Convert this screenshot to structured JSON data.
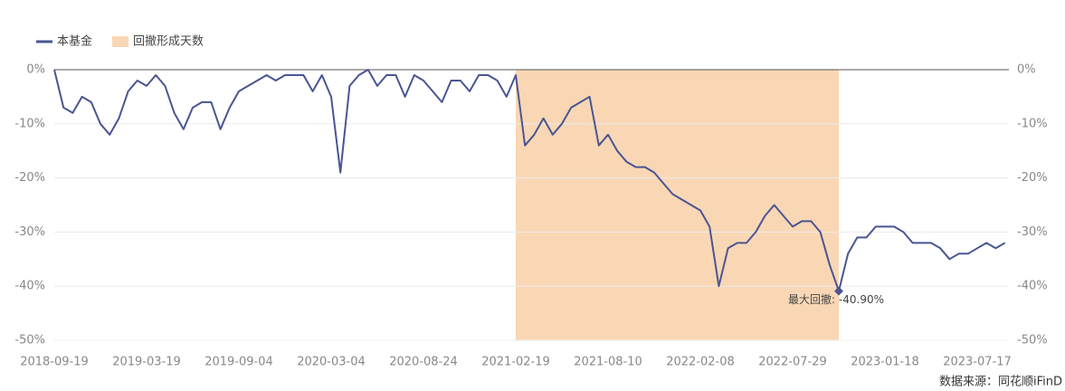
{
  "chart_data": {
    "type": "line",
    "categories": [
      "2018-09-19",
      null,
      null,
      null,
      null,
      null,
      null,
      null,
      null,
      null,
      "2019-03-19",
      null,
      null,
      null,
      null,
      null,
      null,
      null,
      null,
      null,
      "2019-09-04",
      null,
      null,
      null,
      null,
      null,
      null,
      null,
      null,
      null,
      "2020-03-04",
      null,
      null,
      null,
      null,
      null,
      null,
      null,
      null,
      null,
      "2020-08-24",
      null,
      null,
      null,
      null,
      null,
      null,
      null,
      null,
      null,
      "2021-02-19",
      null,
      null,
      null,
      null,
      null,
      null,
      null,
      null,
      null,
      "2021-08-10",
      null,
      null,
      null,
      null,
      null,
      null,
      null,
      null,
      null,
      "2022-02-08",
      null,
      null,
      null,
      null,
      null,
      null,
      null,
      null,
      null,
      "2022-07-29",
      null,
      null,
      null,
      null,
      null,
      null,
      null,
      null,
      null,
      "2023-01-18",
      null,
      null,
      null,
      null,
      null,
      null,
      null,
      null,
      null,
      "2023-07-17",
      null,
      null,
      null
    ],
    "series": [
      {
        "name": "本基金",
        "color": "#4a5592",
        "values": [
          0,
          -7,
          -8,
          -5,
          -6,
          -10,
          -12,
          -9,
          -4,
          -2,
          -3,
          -1,
          -3,
          -8,
          -11,
          -7,
          -6,
          -6,
          -11,
          -7,
          -4,
          -3,
          -2,
          -1,
          -2,
          -1,
          -1,
          -1,
          -4,
          -1,
          -5,
          -19,
          -3,
          -1,
          0,
          -3,
          -1,
          -1,
          -5,
          -1,
          -2,
          -4,
          -6,
          -2,
          -2,
          -4,
          -1,
          -1,
          -2,
          -5,
          -1,
          -14,
          -12,
          -9,
          -12,
          -10,
          -7,
          -6,
          -5,
          -14,
          -12,
          -15,
          -17,
          -18,
          -18,
          -19,
          -21,
          -23,
          -24,
          -25,
          -26,
          -29,
          -40,
          -33,
          -32,
          -32,
          -30,
          -27,
          -25,
          -27,
          -29,
          -28,
          -28,
          -30,
          -36,
          -40.9,
          -34,
          -31,
          -31,
          -29,
          -29,
          -29,
          -30,
          -32,
          -32,
          -32,
          -33,
          -35,
          -34,
          -34,
          -33,
          -32,
          -33,
          -32
        ]
      }
    ],
    "drawdown_period": {
      "name": "回撤形成天数",
      "color": "#f9d7b5",
      "from": 50,
      "to": 85
    },
    "annotation": "最大回撤: -40.90%",
    "ylim": [
      -50,
      0
    ],
    "yticks": [
      {
        "value": 0,
        "label": "0%"
      },
      {
        "value": -10,
        "label": "-10%"
      },
      {
        "value": -20,
        "label": "-20%"
      },
      {
        "value": -30,
        "label": "-30%"
      },
      {
        "value": -40,
        "label": "-40%"
      },
      {
        "value": -50,
        "label": "-50%"
      }
    ],
    "grid": true,
    "source": "数据来源：同花顺iFinD"
  }
}
